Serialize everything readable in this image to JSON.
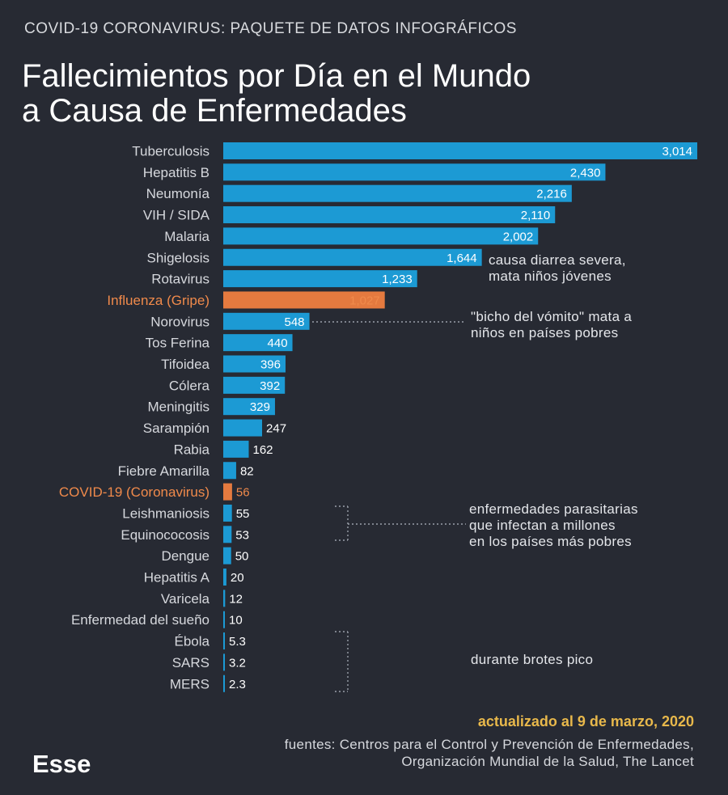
{
  "header": {
    "kicker": "COVID-19 CORONAVIRUS: PAQUETE DE DATOS INFOGRÁFICOS",
    "title_line1": "Fallecimientos por Día en el Mundo",
    "title_line2": "a Causa de Enfermedades"
  },
  "chart_data": {
    "type": "bar",
    "orientation": "horizontal",
    "categories": [
      "Tuberculosis",
      "Hepatitis B",
      "Neumonía",
      "VIH / SIDA",
      "Malaria",
      "Shigelosis",
      "Rotavirus",
      "Influenza (Gripe)",
      "Norovirus",
      "Tos Ferina",
      "Tifoidea",
      "Cólera",
      "Meningitis",
      "Sarampión",
      "Rabia",
      "Fiebre Amarilla",
      "COVID-19 (Coronavirus)",
      "Leishmaniosis",
      "Equinococosis",
      "Dengue",
      "Hepatitis A",
      "Varicela",
      "Enfermedad del sueño",
      "Ébola",
      "SARS",
      "MERS"
    ],
    "values": [
      3014,
      2430,
      2216,
      2110,
      2002,
      1644,
      1233,
      1027,
      548,
      440,
      396,
      392,
      329,
      247,
      162,
      82,
      56,
      55,
      53,
      50,
      20,
      12,
      10,
      5.3,
      3.2,
      2.3
    ],
    "value_labels": [
      "3,014",
      "2,430",
      "2,216",
      "2,110",
      "2,002",
      "1,644",
      "1,233",
      "1,027",
      "548",
      "440",
      "396",
      "392",
      "329",
      "247",
      "162",
      "82",
      "56",
      "55",
      "53",
      "50",
      "20",
      "12",
      "10",
      "5.3",
      "3.2",
      "2.3"
    ],
    "highlighted": [
      "Influenza (Gripe)",
      "COVID-19 (Coronavirus)"
    ],
    "xlim": [
      0,
      3014
    ],
    "grid": false,
    "colors": {
      "bar": "#1c9ad4",
      "highlight_bar": "#e57a3f",
      "highlight_label": "#f08a4b"
    }
  },
  "annotations": {
    "shigelosis": [
      "causa diarrea severa,",
      "mata niños jóvenes"
    ],
    "norovirus": [
      "\"bicho del vómito\" mata a",
      "niños en países pobres"
    ],
    "parasitic": [
      "enfermedades parasitarias",
      "que infectan a millones",
      "en los países más pobres"
    ],
    "outbreaks": "durante brotes pico"
  },
  "footer": {
    "updated": "actualizado al 9 de marzo, 2020",
    "sources_line1": "fuentes: Centros para el Control y Prevención de Enfermedades,",
    "sources_line2": "Organización Mundial de la Salud, The Lancet",
    "logo": "Esse"
  }
}
